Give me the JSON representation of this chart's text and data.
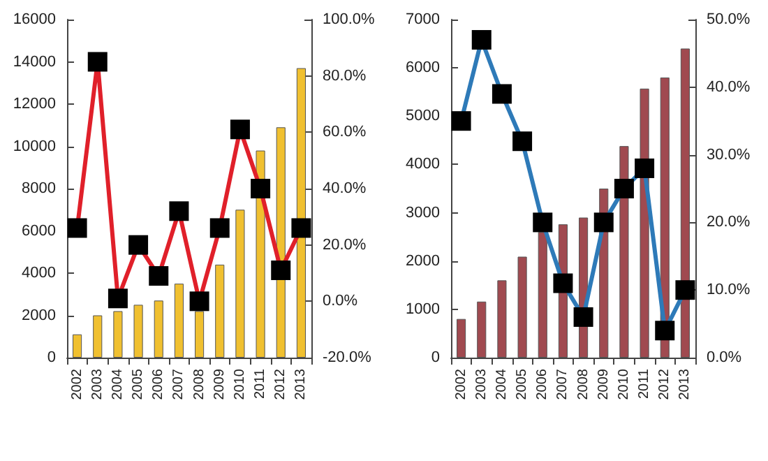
{
  "chart_data": [
    {
      "type": "bar",
      "categories": [
        "2002",
        "2003",
        "2004",
        "2005",
        "2006",
        "2007",
        "2008",
        "2009",
        "2010",
        "2011",
        "2012",
        "2013"
      ],
      "ylim": [
        0,
        16000
      ],
      "yticks": [
        0,
        2000,
        4000,
        6000,
        8000,
        10000,
        12000,
        14000,
        16000
      ],
      "y2lim": [
        -20,
        100
      ],
      "y2ticks": [
        {
          "value": -20,
          "label": "-20.0%"
        },
        {
          "value": 0,
          "label": "0.0%"
        },
        {
          "value": 20,
          "label": "20.0%"
        },
        {
          "value": 40,
          "label": "40.0%"
        },
        {
          "value": 60,
          "label": "60.0%"
        },
        {
          "value": 80,
          "label": "80.0%"
        },
        {
          "value": 100,
          "label": "100.0%"
        }
      ],
      "grid": false,
      "series": [
        {
          "color": "#f0c030",
          "values": [
            1100,
            2000,
            2200,
            2500,
            2700,
            3500,
            2200,
            4400,
            7000,
            9800,
            10900,
            13700
          ]
        },
        {
          "type": "line",
          "axis": "y2",
          "color": "#e0202a",
          "marker": "square",
          "values": [
            26,
            85,
            1,
            20,
            9,
            32,
            0,
            26,
            61,
            40,
            11,
            26
          ]
        }
      ]
    },
    {
      "type": "bar",
      "categories": [
        "2002",
        "2003",
        "2004",
        "2005",
        "2006",
        "2007",
        "2008",
        "2009",
        "2010",
        "2011",
        "2012",
        "2013"
      ],
      "ylim": [
        0,
        7000
      ],
      "yticks": [
        0,
        1000,
        2000,
        3000,
        4000,
        5000,
        6000,
        7000
      ],
      "y2lim": [
        0,
        50
      ],
      "y2ticks": [
        {
          "value": 0,
          "label": "0.0%"
        },
        {
          "value": 10,
          "label": "10.0%"
        },
        {
          "value": 20,
          "label": "20.0%"
        },
        {
          "value": 30,
          "label": "30.0%"
        },
        {
          "value": 40,
          "label": "40.0%"
        },
        {
          "value": 50,
          "label": "50.0%"
        }
      ],
      "grid": false,
      "series": [
        {
          "color": "#a04a50",
          "values": [
            800,
            1160,
            1600,
            2090,
            2600,
            2760,
            2900,
            3500,
            4380,
            5570,
            5800,
            6400
          ]
        },
        {
          "type": "line",
          "axis": "y2",
          "color": "#2e7ab8",
          "marker": "square",
          "values": [
            35,
            47,
            39,
            32,
            20,
            11,
            6,
            20,
            25,
            28,
            4,
            10
          ]
        }
      ]
    }
  ]
}
